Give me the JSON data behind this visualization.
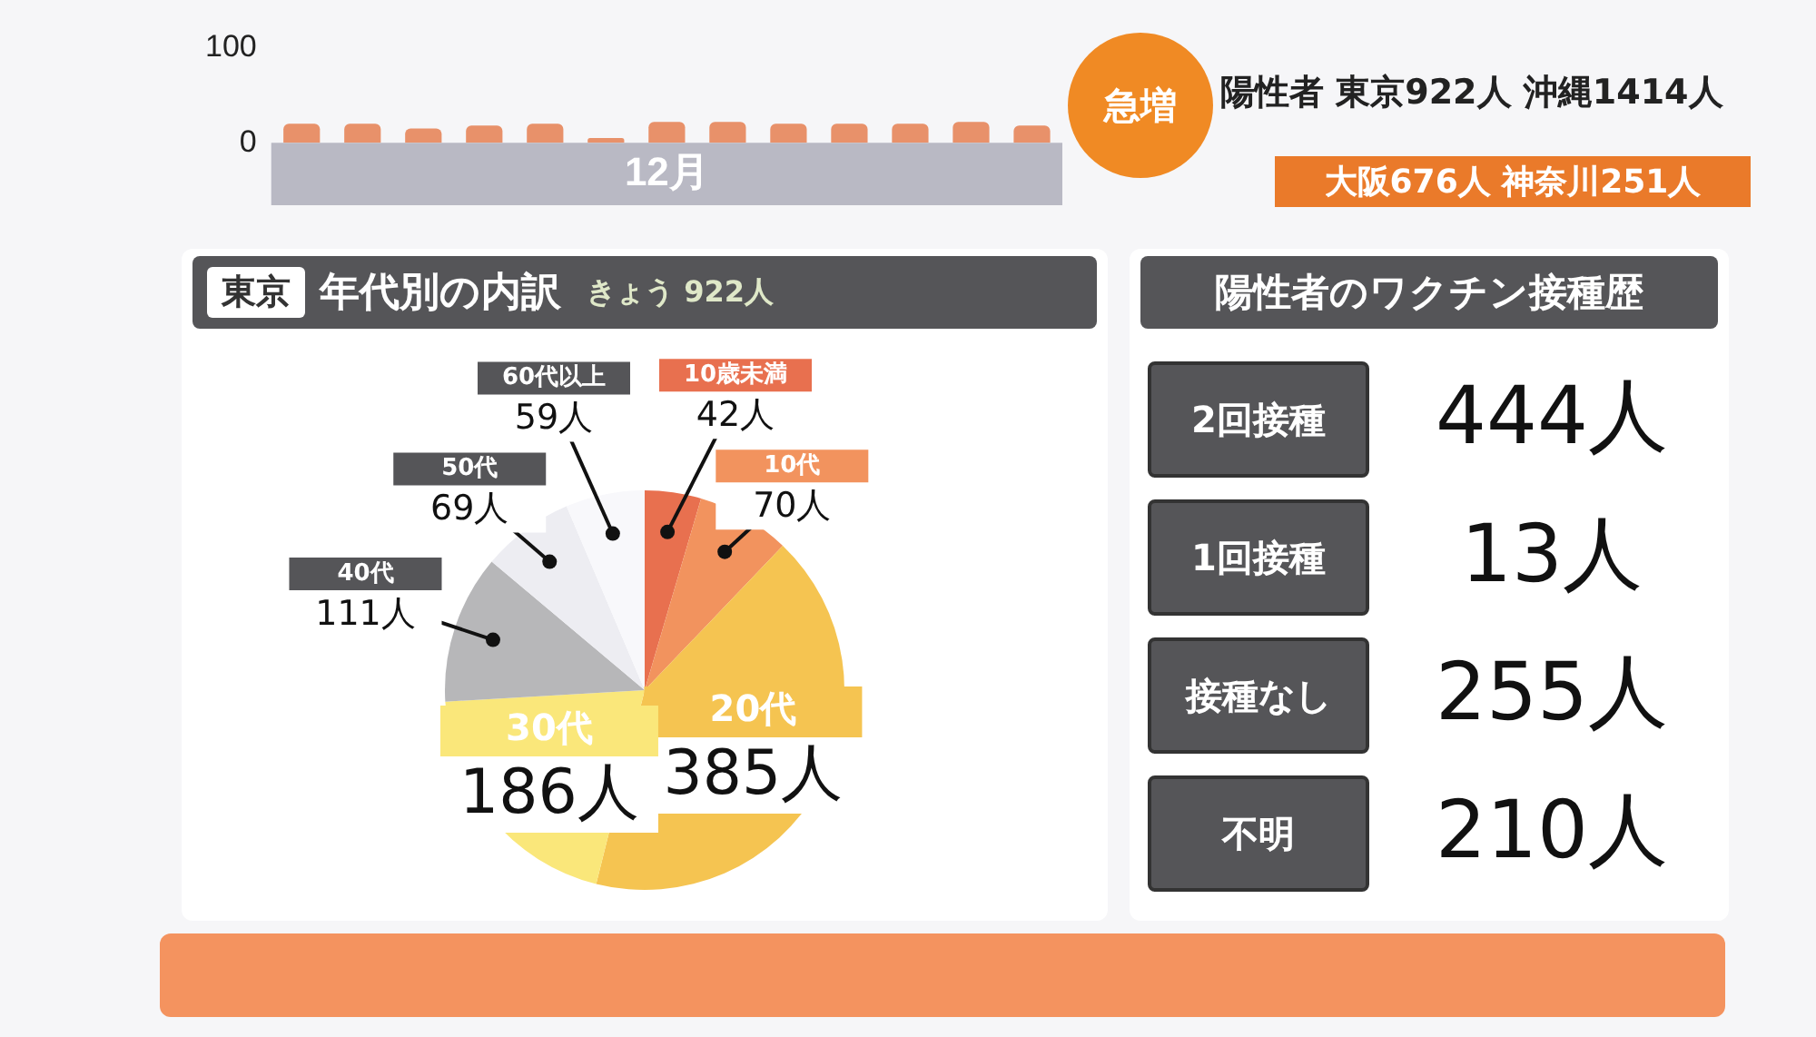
{
  "chart_data": [
    {
      "type": "bar",
      "categories": [
        null,
        null,
        null,
        null,
        null,
        null,
        null,
        null,
        null,
        null,
        null,
        null,
        null
      ],
      "values": [
        20,
        20,
        15,
        18,
        20,
        5,
        22,
        22,
        20,
        20,
        20,
        22,
        18
      ],
      "color": "#e8916a",
      "ylim": [
        0,
        100
      ],
      "yticks": [
        0,
        100
      ],
      "xlabel": "12月",
      "annotations": [
        "急増",
        "陽性者 東京922人 沖縄1414人",
        "大阪676人 神奈川251人"
      ]
    },
    {
      "type": "pie",
      "title": "年代別の内訳",
      "subtitle": "きょう 922人",
      "annotations": [
        "東京"
      ],
      "categories": [
        "10歳未満",
        "10代",
        "20代",
        "30代",
        "40代",
        "50代",
        "60代以上"
      ],
      "values": [
        42,
        70,
        385,
        186,
        111,
        69,
        59
      ],
      "colors": [
        "#e8704f",
        "#f2935e",
        "#f5c451",
        "#fae77a",
        "#b7b7b9",
        "#ededf2",
        "#f8f8fb"
      ],
      "value_labels": [
        "42人",
        "70人",
        "385人",
        "186人",
        "111人",
        "69人",
        "59人"
      ]
    },
    {
      "type": "other",
      "title": "陽性者のワクチン接種歴",
      "categories": [
        "2回接種",
        "1回接種",
        "接種なし",
        "不明"
      ],
      "value_labels": [
        "444人",
        "13人",
        "255人",
        "210人"
      ]
    }
  ]
}
